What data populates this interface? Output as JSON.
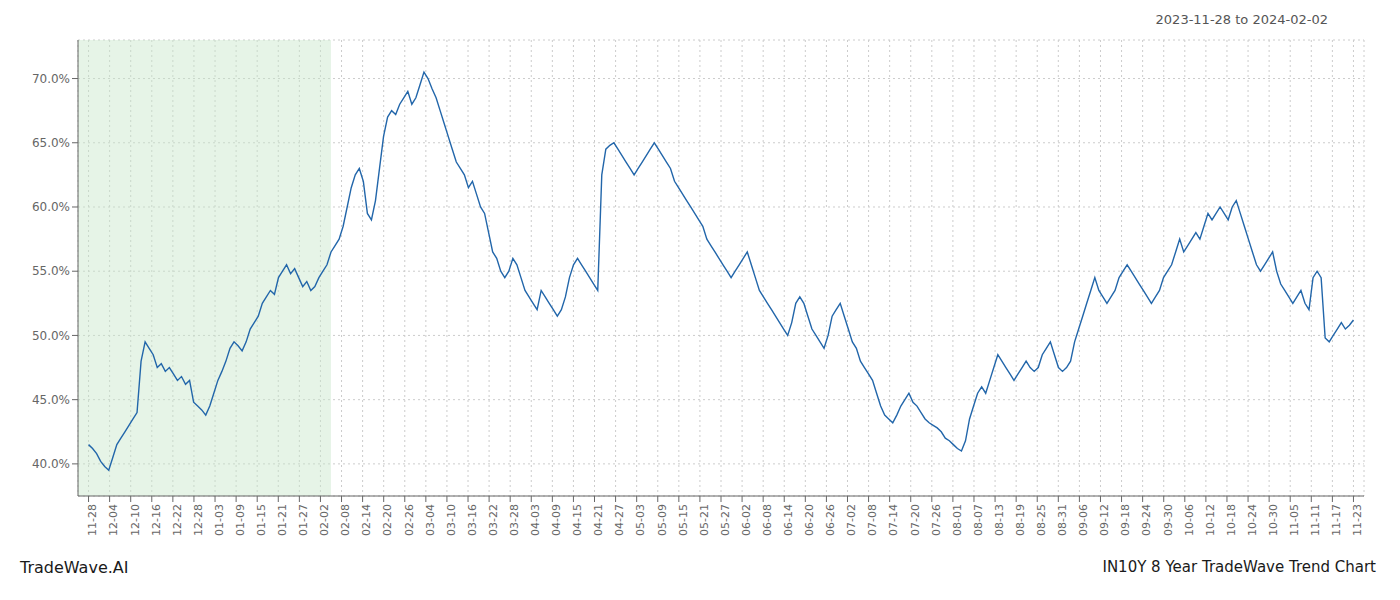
{
  "chart_data": {
    "type": "line",
    "title": "IN10Y 8 Year TradeWave Trend Chart",
    "subtitle": "2023-11-28 to 2024-02-02",
    "annotations": [
      "TradeWave.AI"
    ],
    "color": "#2266aa",
    "grid": true,
    "xlim": [
      -0.5,
      60.5
    ],
    "xticks": [
      {
        "value": 0,
        "label": "11-28"
      },
      {
        "value": 1,
        "label": "12-04"
      },
      {
        "value": 2,
        "label": "12-10"
      },
      {
        "value": 3,
        "label": "12-16"
      },
      {
        "value": 4,
        "label": "12-22"
      },
      {
        "value": 5,
        "label": "12-28"
      },
      {
        "value": 6,
        "label": "01-03"
      },
      {
        "value": 7,
        "label": "01-09"
      },
      {
        "value": 8,
        "label": "01-15"
      },
      {
        "value": 9,
        "label": "01-21"
      },
      {
        "value": 10,
        "label": "01-27"
      },
      {
        "value": 11,
        "label": "02-02"
      },
      {
        "value": 12,
        "label": "02-08"
      },
      {
        "value": 13,
        "label": "02-14"
      },
      {
        "value": 14,
        "label": "02-20"
      },
      {
        "value": 15,
        "label": "02-26"
      },
      {
        "value": 16,
        "label": "03-04"
      },
      {
        "value": 17,
        "label": "03-10"
      },
      {
        "value": 18,
        "label": "03-16"
      },
      {
        "value": 19,
        "label": "03-22"
      },
      {
        "value": 20,
        "label": "03-28"
      },
      {
        "value": 21,
        "label": "04-03"
      },
      {
        "value": 22,
        "label": "04-09"
      },
      {
        "value": 23,
        "label": "04-15"
      },
      {
        "value": 24,
        "label": "04-21"
      },
      {
        "value": 25,
        "label": "04-27"
      },
      {
        "value": 26,
        "label": "05-03"
      },
      {
        "value": 27,
        "label": "05-09"
      },
      {
        "value": 28,
        "label": "05-15"
      },
      {
        "value": 29,
        "label": "05-21"
      },
      {
        "value": 30,
        "label": "05-27"
      },
      {
        "value": 31,
        "label": "06-02"
      },
      {
        "value": 32,
        "label": "06-08"
      },
      {
        "value": 33,
        "label": "06-14"
      },
      {
        "value": 34,
        "label": "06-20"
      },
      {
        "value": 35,
        "label": "06-26"
      },
      {
        "value": 36,
        "label": "07-02"
      },
      {
        "value": 37,
        "label": "07-08"
      },
      {
        "value": 38,
        "label": "07-14"
      },
      {
        "value": 39,
        "label": "07-20"
      },
      {
        "value": 40,
        "label": "07-26"
      },
      {
        "value": 41,
        "label": "08-01"
      },
      {
        "value": 42,
        "label": "08-07"
      },
      {
        "value": 43,
        "label": "08-13"
      },
      {
        "value": 44,
        "label": "08-19"
      },
      {
        "value": 45,
        "label": "08-25"
      },
      {
        "value": 46,
        "label": "08-31"
      },
      {
        "value": 47,
        "label": "09-06"
      },
      {
        "value": 48,
        "label": "09-12"
      },
      {
        "value": 49,
        "label": "09-18"
      },
      {
        "value": 50,
        "label": "09-24"
      },
      {
        "value": 51,
        "label": "09-30"
      },
      {
        "value": 52,
        "label": "10-06"
      },
      {
        "value": 53,
        "label": "10-12"
      },
      {
        "value": 54,
        "label": "10-18"
      },
      {
        "value": 55,
        "label": "10-24"
      },
      {
        "value": 56,
        "label": "10-30"
      },
      {
        "value": 57,
        "label": "11-05"
      },
      {
        "value": 58,
        "label": "11-11"
      },
      {
        "value": 59,
        "label": "11-17"
      },
      {
        "value": 60,
        "label": "11-23"
      }
    ],
    "ylim": [
      37.5,
      73.0
    ],
    "yticks": [
      {
        "value": 40.0,
        "label": "40.0%"
      },
      {
        "value": 45.0,
        "label": "45.0%"
      },
      {
        "value": 50.0,
        "label": "50.0%"
      },
      {
        "value": 55.0,
        "label": "55.0%"
      },
      {
        "value": 60.0,
        "label": "60.0%"
      },
      {
        "value": 65.0,
        "label": "65.0%"
      },
      {
        "value": 70.0,
        "label": "70.0%"
      }
    ],
    "shade": {
      "from": -0.5,
      "to": 11.5,
      "color": "#c8e6c9"
    },
    "values": [
      41.5,
      41.2,
      40.8,
      40.2,
      39.8,
      39.5,
      40.5,
      41.5,
      42.0,
      42.5,
      43.0,
      43.5,
      44.0,
      48.0,
      49.5,
      49.0,
      48.5,
      47.5,
      47.8,
      47.2,
      47.5,
      47.0,
      46.5,
      46.8,
      46.2,
      46.5,
      44.8,
      44.5,
      44.2,
      43.8,
      44.5,
      45.5,
      46.5,
      47.2,
      48.0,
      49.0,
      49.5,
      49.2,
      48.8,
      49.5,
      50.5,
      51.0,
      51.5,
      52.5,
      53.0,
      53.5,
      53.2,
      54.5,
      55.0,
      55.5,
      54.8,
      55.2,
      54.5,
      53.8,
      54.2,
      53.5,
      53.8,
      54.5,
      55.0,
      55.5,
      56.5,
      57.0,
      57.5,
      58.5,
      60.0,
      61.5,
      62.5,
      63.0,
      62.0,
      59.5,
      59.0,
      60.5,
      63.0,
      65.5,
      67.0,
      67.5,
      67.2,
      68.0,
      68.5,
      69.0,
      68.0,
      68.5,
      69.5,
      70.5,
      70.0,
      69.2,
      68.5,
      67.5,
      66.5,
      65.5,
      64.5,
      63.5,
      63.0,
      62.5,
      61.5,
      62.0,
      61.0,
      60.0,
      59.5,
      58.0,
      56.5,
      56.0,
      55.0,
      54.5,
      55.0,
      56.0,
      55.5,
      54.5,
      53.5,
      53.0,
      52.5,
      52.0,
      53.5,
      53.0,
      52.5,
      52.0,
      51.5,
      52.0,
      53.0,
      54.5,
      55.5,
      56.0,
      55.5,
      55.0,
      54.5,
      54.0,
      53.5,
      62.5,
      64.5,
      64.8,
      65.0,
      64.5,
      64.0,
      63.5,
      63.0,
      62.5,
      63.0,
      63.5,
      64.0,
      64.5,
      65.0,
      64.5,
      64.0,
      63.5,
      63.0,
      62.0,
      61.5,
      61.0,
      60.5,
      60.0,
      59.5,
      59.0,
      58.5,
      57.5,
      57.0,
      56.5,
      56.0,
      55.5,
      55.0,
      54.5,
      55.0,
      55.5,
      56.0,
      56.5,
      55.5,
      54.5,
      53.5,
      53.0,
      52.5,
      52.0,
      51.5,
      51.0,
      50.5,
      50.0,
      51.0,
      52.5,
      53.0,
      52.5,
      51.5,
      50.5,
      50.0,
      49.5,
      49.0,
      50.0,
      51.5,
      52.0,
      52.5,
      51.5,
      50.5,
      49.5,
      49.0,
      48.0,
      47.5,
      47.0,
      46.5,
      45.5,
      44.5,
      43.8,
      43.5,
      43.2,
      43.8,
      44.5,
      45.0,
      45.5,
      44.8,
      44.5,
      44.0,
      43.5,
      43.2,
      43.0,
      42.8,
      42.5,
      42.0,
      41.8,
      41.5,
      41.2,
      41.0,
      41.8,
      43.5,
      44.5,
      45.5,
      46.0,
      45.5,
      46.5,
      47.5,
      48.5,
      48.0,
      47.5,
      47.0,
      46.5,
      47.0,
      47.5,
      48.0,
      47.5,
      47.2,
      47.5,
      48.5,
      49.0,
      49.5,
      48.5,
      47.5,
      47.2,
      47.5,
      48.0,
      49.5,
      50.5,
      51.5,
      52.5,
      53.5,
      54.5,
      53.5,
      53.0,
      52.5,
      53.0,
      53.5,
      54.5,
      55.0,
      55.5,
      55.0,
      54.5,
      54.0,
      53.5,
      53.0,
      52.5,
      53.0,
      53.5,
      54.5,
      55.0,
      55.5,
      56.5,
      57.5,
      56.5,
      57.0,
      57.5,
      58.0,
      57.5,
      58.5,
      59.5,
      59.0,
      59.5,
      60.0,
      59.5,
      59.0,
      60.0,
      60.5,
      59.5,
      58.5,
      57.5,
      56.5,
      55.5,
      55.0,
      55.5,
      56.0,
      56.5,
      55.0,
      54.0,
      53.5,
      53.0,
      52.5,
      53.0,
      53.5,
      52.5,
      52.0,
      54.5,
      55.0,
      54.5,
      49.8,
      49.5,
      50.0,
      50.5,
      51.0,
      50.5,
      50.8,
      51.2
    ]
  }
}
